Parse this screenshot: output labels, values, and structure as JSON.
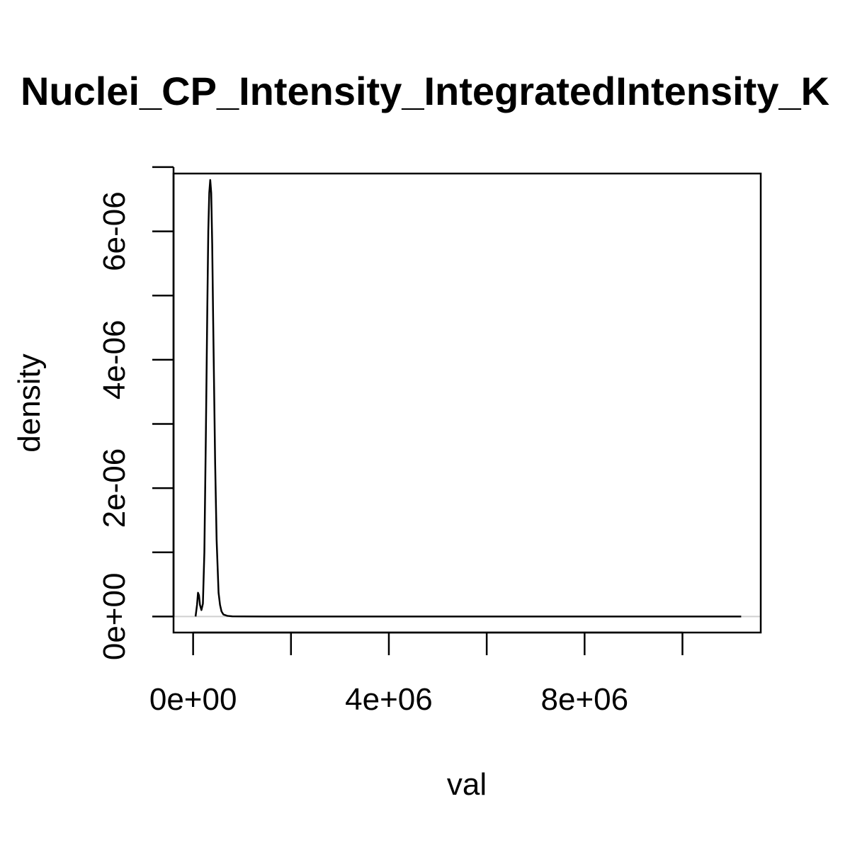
{
  "chart_data": {
    "type": "line",
    "title": "Nuclei_CP_Intensity_IntegratedIntensity_K",
    "xlabel": "val",
    "ylabel": "density",
    "xlim": [
      -400000,
      11600000
    ],
    "ylim": [
      -2.5e-07,
      6.9e-06
    ],
    "x_ticks": [
      0,
      2000000,
      4000000,
      6000000,
      8000000,
      10000000
    ],
    "x_tick_labels": [
      "0e+00",
      "",
      "4e+06",
      "",
      "8e+06",
      ""
    ],
    "y_ticks": [
      0,
      1e-06,
      2e-06,
      3e-06,
      4e-06,
      5e-06,
      6e-06,
      7e-06
    ],
    "y_tick_labels": [
      "0e+00",
      "",
      "2e-06",
      "",
      "4e-06",
      "",
      "6e-06",
      ""
    ],
    "grid": false,
    "zero_line_color": "#d0d0d0",
    "line_color": "#000000",
    "series": [
      {
        "x": [
          50000,
          80000,
          100000,
          120000,
          140000,
          170000,
          200000,
          230000,
          260000,
          290000,
          310000,
          330000,
          350000,
          370000,
          390000,
          410000,
          430000,
          450000,
          480000,
          520000,
          550000,
          580000,
          620000,
          700000,
          800000,
          1000000,
          1500000,
          3000000,
          6000000,
          9000000,
          11200000
        ],
        "y": [
          0,
          1.8e-07,
          3.7e-07,
          3.3e-07,
          1.8e-07,
          1e-07,
          2e-07,
          1e-06,
          2.8e-06,
          4.8e-06,
          6e-06,
          6.6e-06,
          6.8e-06,
          6.6e-06,
          5.8e-06,
          4.6e-06,
          3.5e-06,
          2.4e-06,
          1.2e-06,
          3.7e-07,
          1.8e-07,
          8e-08,
          3e-08,
          1e-08,
          3e-09,
          1e-09,
          0,
          0,
          0,
          0,
          0
        ]
      }
    ]
  }
}
